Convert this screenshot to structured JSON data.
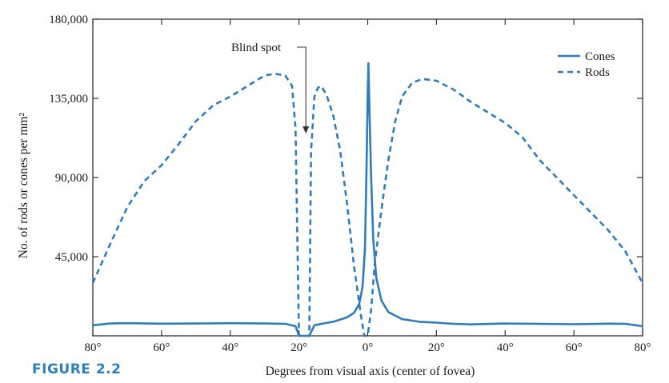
{
  "figure_label": "FIGURE 2.2",
  "colors": {
    "series": "#2f7cbf",
    "axis": "#333333"
  },
  "chart_data": {
    "type": "line",
    "xlabel": "Degrees from visual axis (center of fovea)",
    "ylabel": "No. of rods or cones per mm²",
    "xlim": [
      -80,
      80
    ],
    "ylim": [
      0,
      180000
    ],
    "x_tick_labels": [
      "80°",
      "60°",
      "40°",
      "20°",
      "0°",
      "20°",
      "40°",
      "60°",
      "80°"
    ],
    "y_tick_labels": [
      "45,000",
      "90,000",
      "135,000",
      "180,000"
    ],
    "y_tick_values": [
      45000,
      90000,
      135000,
      180000
    ],
    "legend_position": "top-right",
    "annotation": {
      "text": "Blind spot",
      "x": -18,
      "y": 115000
    },
    "series": [
      {
        "name": "Cones",
        "style": "solid",
        "points": [
          [
            -80,
            6000
          ],
          [
            -75,
            7000
          ],
          [
            -70,
            7200
          ],
          [
            -60,
            6900
          ],
          [
            -50,
            7000
          ],
          [
            -40,
            7200
          ],
          [
            -30,
            7000
          ],
          [
            -24,
            6800
          ],
          [
            -21,
            5500
          ],
          [
            -20,
            0
          ],
          [
            -17,
            0
          ],
          [
            -15.5,
            6000
          ],
          [
            -13,
            7000
          ],
          [
            -10,
            8000
          ],
          [
            -6,
            10500
          ],
          [
            -4,
            13000
          ],
          [
            -2.5,
            18000
          ],
          [
            -1.5,
            28000
          ],
          [
            -0.8,
            50000
          ],
          [
            -0.3,
            100000
          ],
          [
            0,
            138000
          ],
          [
            0.2,
            155000
          ],
          [
            0.5,
            130000
          ],
          [
            1,
            90000
          ],
          [
            1.6,
            55000
          ],
          [
            2.5,
            33000
          ],
          [
            4,
            20000
          ],
          [
            6,
            13500
          ],
          [
            10,
            9500
          ],
          [
            15,
            8000
          ],
          [
            20,
            7500
          ],
          [
            25,
            6800
          ],
          [
            30,
            6500
          ],
          [
            40,
            7000
          ],
          [
            50,
            6800
          ],
          [
            60,
            6600
          ],
          [
            70,
            6900
          ],
          [
            75,
            6800
          ],
          [
            80,
            5500
          ]
        ]
      },
      {
        "name": "Rods",
        "style": "dashed",
        "points": [
          [
            -80,
            30000
          ],
          [
            -75,
            52000
          ],
          [
            -70,
            73000
          ],
          [
            -65,
            88000
          ],
          [
            -60,
            97000
          ],
          [
            -55,
            109000
          ],
          [
            -50,
            122000
          ],
          [
            -45,
            131000
          ],
          [
            -40,
            136000
          ],
          [
            -35,
            142000
          ],
          [
            -30,
            148000
          ],
          [
            -27,
            149000
          ],
          [
            -24,
            148000
          ],
          [
            -22,
            142000
          ],
          [
            -21,
            118000
          ],
          [
            -20,
            0
          ],
          [
            -17,
            0
          ],
          [
            -16.5,
            105000
          ],
          [
            -15.5,
            136000
          ],
          [
            -14.5,
            141000
          ],
          [
            -13.5,
            142000
          ],
          [
            -12,
            137000
          ],
          [
            -10,
            125000
          ],
          [
            -8,
            105000
          ],
          [
            -6,
            75000
          ],
          [
            -4,
            40000
          ],
          [
            -2,
            12000
          ],
          [
            -1,
            0
          ],
          [
            0,
            0
          ],
          [
            1,
            15000
          ],
          [
            2,
            40000
          ],
          [
            4,
            72000
          ],
          [
            6,
            100000
          ],
          [
            8,
            122000
          ],
          [
            10,
            136000
          ],
          [
            13,
            144000
          ],
          [
            16,
            146000
          ],
          [
            20,
            145000
          ],
          [
            25,
            140000
          ],
          [
            30,
            133000
          ],
          [
            35,
            127000
          ],
          [
            40,
            121000
          ],
          [
            45,
            113000
          ],
          [
            50,
            100000
          ],
          [
            55,
            90000
          ],
          [
            60,
            80000
          ],
          [
            65,
            70000
          ],
          [
            70,
            60000
          ],
          [
            75,
            48000
          ],
          [
            80,
            30000
          ]
        ]
      }
    ]
  }
}
